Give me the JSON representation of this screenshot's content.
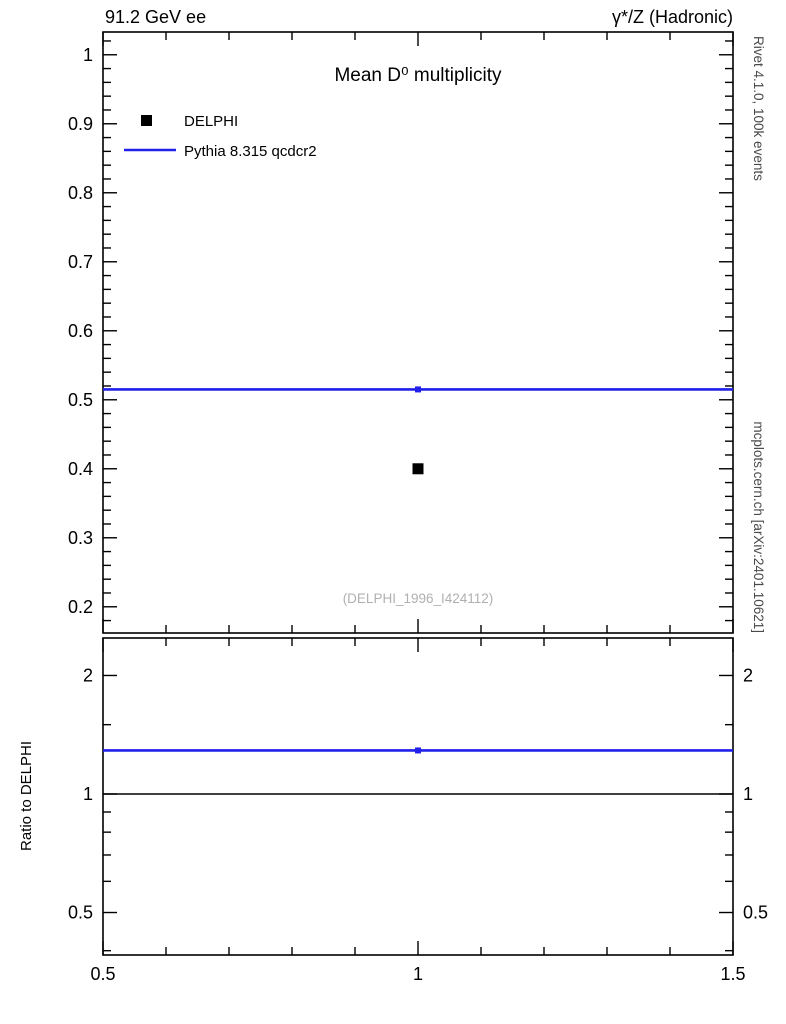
{
  "header": {
    "left": "91.2 GeV ee",
    "right": "γ*/Z (Hadronic)"
  },
  "margin_notes": {
    "top_right": "Rivet 4.1.0, 100k events",
    "bottom_right": "mcplots.cern.ch [arXiv:2401.10621]"
  },
  "watermark": "(DELPHI_1996_I424112)",
  "legend": [
    {
      "label": "DELPHI",
      "marker": "square",
      "color": "#000000"
    },
    {
      "label": "Pythia 8.315 qcdcr2",
      "marker": "line",
      "color": "#2121eb"
    }
  ],
  "chart_data": [
    {
      "type": "line",
      "panel": "main",
      "title": "Mean D⁰ multiplicity",
      "xlim": [
        0.5,
        1.5
      ],
      "ylim": [
        0.162,
        1.033
      ],
      "yscale": "linear",
      "yticks": [
        0.2,
        0.3,
        0.4,
        0.5,
        0.6,
        0.7,
        0.8,
        0.9,
        1
      ],
      "ytick_minor_step": 0.02,
      "xticks": [
        0.5,
        1,
        1.5
      ],
      "xtick_minor_step": 0.1,
      "grid": false,
      "legend_position": "top-left",
      "series": [
        {
          "name": "Pythia 8.315 qcdcr2",
          "type": "hline",
          "color": "#2121eb",
          "lw": 2.6,
          "y": 0.515,
          "x_start": 0.5,
          "x_end": 1.5,
          "marker_x": 1.0
        },
        {
          "name": "DELPHI",
          "type": "scatter",
          "marker": "square",
          "color": "#000000",
          "points": [
            [
              1.0,
              0.4
            ]
          ]
        }
      ]
    },
    {
      "type": "line",
      "panel": "ratio",
      "ylabel": "Ratio to DELPHI",
      "xlim": [
        0.5,
        1.5
      ],
      "ylim": [
        0.39,
        2.49
      ],
      "yscale": "log",
      "yticks": [
        0.5,
        1,
        2
      ],
      "yticks_minor": [
        0.4,
        0.6,
        0.7,
        0.8,
        0.9,
        1.5
      ],
      "right_labels": true,
      "xticks": [
        0.5,
        1,
        1.5
      ],
      "xtick_minor_step": 0.1,
      "grid": false,
      "series": [
        {
          "name": "reference",
          "type": "hline",
          "color": "#000000",
          "lw": 1.4,
          "y": 1.0
        },
        {
          "name": "Pythia 8.315 qcdcr2 ratio",
          "type": "hline",
          "color": "#2121eb",
          "lw": 2.6,
          "y": 1.29,
          "marker_x": 1.0
        }
      ]
    }
  ]
}
